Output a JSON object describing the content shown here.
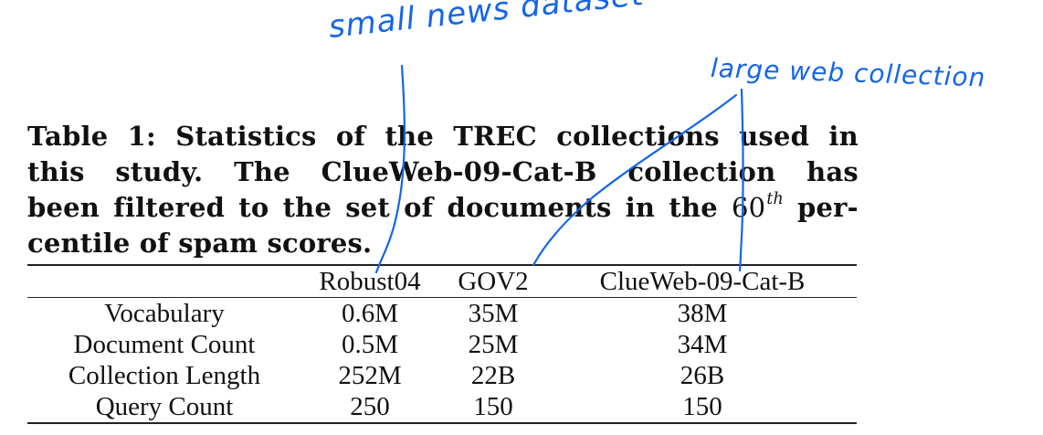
{
  "caption": {
    "line1_words": [
      "Table",
      "1:",
      "Statistics",
      "of",
      "the",
      "TREC",
      "collections",
      "used",
      "in"
    ],
    "line2_words": [
      "this",
      "study.",
      "The",
      "ClueWeb-09-Cat-B",
      "collection",
      "has"
    ],
    "line3_words": [
      "been",
      "filtered",
      "to",
      "the",
      "set",
      "of",
      "documents",
      "in",
      "the"
    ],
    "line3_math_base": "60",
    "line3_math_sup": "th",
    "line3_end": "per-",
    "line4": "centile of spam scores."
  },
  "table": {
    "columns": [
      "",
      "Robust04",
      "GOV2",
      "ClueWeb-09-Cat-B"
    ],
    "rows": [
      {
        "label": "Vocabulary",
        "robust04": "0.6M",
        "gov2": "35M",
        "clueweb": "38M"
      },
      {
        "label": "Document Count",
        "robust04": "0.5M",
        "gov2": "25M",
        "clueweb": "34M"
      },
      {
        "label": "Collection Length",
        "robust04": "252M",
        "gov2": "22B",
        "clueweb": "26B"
      },
      {
        "label": "Query Count",
        "robust04": "250",
        "gov2": "150",
        "clueweb": "150"
      }
    ]
  },
  "annotations": {
    "note1": "small news dataset",
    "note2": "large web collection",
    "ink_color": "#1565e8"
  }
}
